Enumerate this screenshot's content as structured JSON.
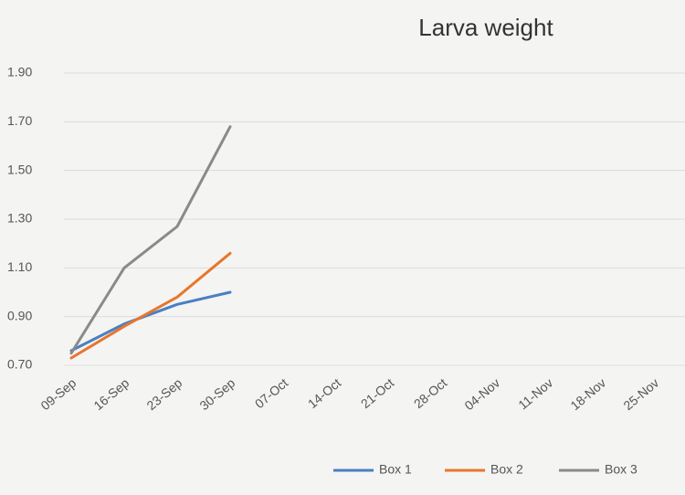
{
  "chart_data": {
    "type": "line",
    "title": "Larva weight",
    "categories": [
      "09-Sep",
      "16-Sep",
      "23-Sep",
      "30-Sep",
      "07-Oct",
      "14-Oct",
      "21-Oct",
      "28-Oct",
      "04-Nov",
      "11-Nov",
      "18-Nov",
      "25-Nov"
    ],
    "series": [
      {
        "name": "Box 1",
        "color": "#4a7fc4",
        "values": [
          0.76,
          0.87,
          0.95,
          1.0,
          null,
          null,
          null,
          null,
          null,
          null,
          null,
          null
        ]
      },
      {
        "name": "Box 2",
        "color": "#e8762d",
        "values": [
          0.73,
          0.86,
          0.98,
          1.16,
          null,
          null,
          null,
          null,
          null,
          null,
          null,
          null
        ]
      },
      {
        "name": "Box 3",
        "color": "#8a8a8a",
        "values": [
          0.75,
          1.1,
          1.27,
          1.68,
          null,
          null,
          null,
          null,
          null,
          null,
          null,
          null
        ]
      }
    ],
    "ylim": [
      0.7,
      1.9
    ],
    "yticks": [
      {
        "value": 0.7,
        "label": "0.70"
      },
      {
        "value": 0.9,
        "label": "0.90"
      },
      {
        "value": 1.1,
        "label": "1.10"
      },
      {
        "value": 1.3,
        "label": "1.30"
      },
      {
        "value": 1.5,
        "label": "1.50"
      },
      {
        "value": 1.7,
        "label": "1.70"
      },
      {
        "value": 1.9,
        "label": "1.90"
      }
    ],
    "grid": true,
    "legend": "bottom"
  }
}
